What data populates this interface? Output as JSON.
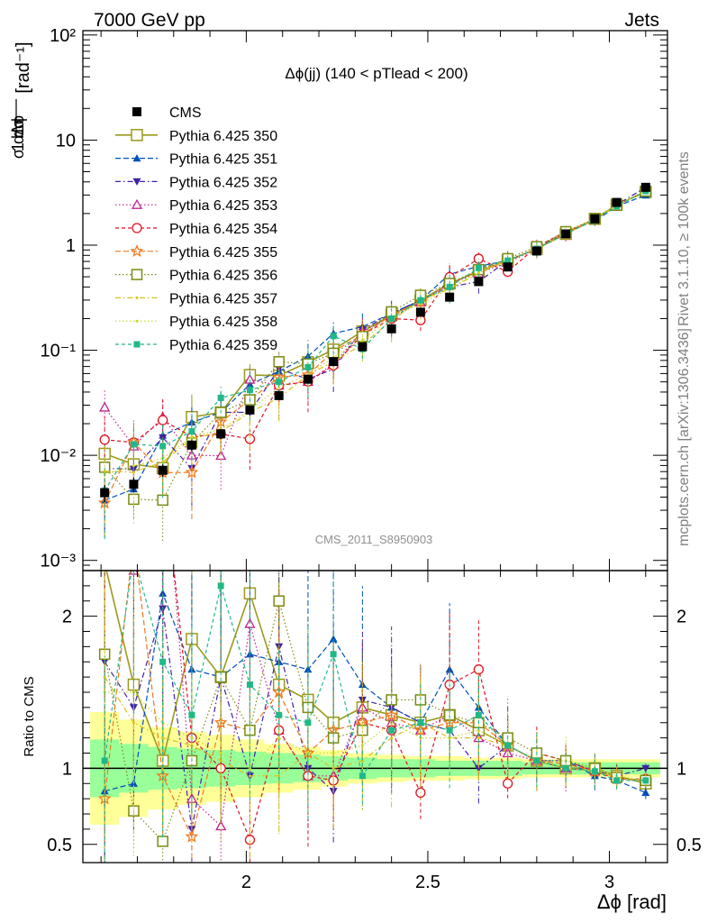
{
  "header": {
    "left": "7000 GeV pp",
    "right": "Jets"
  },
  "side_labels": {
    "rivet": "Rivet 3.1.10, ≥ 100k events",
    "mcplots": "mcplots.cern.ch [arXiv:1306.3436]"
  },
  "chart_data": {
    "type": "line",
    "title": "Δϕ(jj) (140 < pTlead <  200)",
    "analysis": "CMS_2011_S8950903",
    "xlabel": "Δϕ [rad]",
    "ylabel_main": "1/σ dσ/dΔϕ [rad⁻¹]",
    "ylabel_ratio": "Ratio to CMS",
    "xlim": [
      1.55,
      3.16
    ],
    "ylim": [
      0.0008,
      110
    ],
    "yscale": "log",
    "ratio_ylim": [
      0.38,
      2.3
    ],
    "xticks": [
      "2",
      "2.5",
      "3"
    ],
    "yticks_main": [
      "10⁻³",
      "10⁻²",
      "10⁻¹",
      "1",
      "10",
      "10²"
    ],
    "yticks_ratio": [
      "0.5",
      "1",
      "2"
    ],
    "legend_position": "top-left",
    "x": [
      1.61,
      1.69,
      1.77,
      1.85,
      1.93,
      2.01,
      2.09,
      2.17,
      2.24,
      2.32,
      2.4,
      2.48,
      2.56,
      2.64,
      2.72,
      2.8,
      2.88,
      2.96,
      3.02,
      3.1
    ],
    "data": {
      "name": "CMS",
      "values": [
        0.0044,
        0.0053,
        0.0072,
        0.0125,
        0.016,
        0.027,
        0.037,
        0.053,
        0.078,
        0.108,
        0.16,
        0.23,
        0.32,
        0.45,
        0.62,
        0.88,
        1.28,
        1.78,
        2.55,
        3.55
      ],
      "band_inner": [
        0.19,
        0.16,
        0.14,
        0.13,
        0.12,
        0.11,
        0.1,
        0.09,
        0.08,
        0.07,
        0.06,
        0.06,
        0.05,
        0.05,
        0.05,
        0.04,
        0.04,
        0.04,
        0.04,
        0.04
      ],
      "band_outer": [
        0.37,
        0.32,
        0.27,
        0.24,
        0.22,
        0.19,
        0.16,
        0.14,
        0.12,
        0.1,
        0.09,
        0.08,
        0.08,
        0.07,
        0.07,
        0.06,
        0.06,
        0.06,
        0.06,
        0.06
      ]
    },
    "series": [
      {
        "name": "Pythia 6.425 350",
        "color": "#9a9a1c",
        "dash": "",
        "marker": "square-open",
        "size": 12,
        "width": 1.6,
        "ratio": [
          2.35,
          1.55,
          1.05,
          1.85,
          1.6,
          2.15,
          1.55,
          1.45,
          1.3,
          1.4,
          1.35,
          1.3,
          1.35,
          1.25,
          1.15,
          1.05,
          1.0,
          1.0,
          0.95,
          0.9
        ]
      },
      {
        "name": "Pythia 6.425 351",
        "color": "#0050b8",
        "dash": "6,3",
        "marker": "triangle-up",
        "size": 9,
        "width": 1.2,
        "ratio": [
          0.85,
          0.9,
          2.15,
          1.65,
          1.6,
          1.75,
          1.7,
          1.65,
          1.85,
          1.55,
          1.4,
          1.3,
          1.65,
          1.4,
          1.15,
          1.05,
          1.05,
          0.95,
          0.92,
          0.84
        ]
      },
      {
        "name": "Pythia 6.425 352",
        "color": "#4020a8",
        "dash": "6,3,1.5,3",
        "marker": "triangle-down",
        "size": 9,
        "width": 1.2,
        "ratio": [
          1.7,
          1.4,
          2.05,
          0.6,
          1.6,
          0.95,
          1.8,
          1.0,
          0.85,
          1.45,
          1.4,
          1.3,
          1.25,
          1.0,
          1.15,
          1.05,
          1.05,
          0.98,
          0.95,
          1.0
        ]
      },
      {
        "name": "Pythia 6.425 353",
        "color": "#c02090",
        "dash": "1.5,2.5",
        "marker": "triangle-open",
        "size": 10,
        "width": 1.2,
        "ratio": [
          6.5,
          2.3,
          3.2,
          0.8,
          0.62,
          1.95,
          1.25,
          0.95,
          0.95,
          1.4,
          1.3,
          1.25,
          1.35,
          1.2,
          1.1,
          1.05,
          1.0,
          0.98,
          0.94,
          0.92
        ]
      },
      {
        "name": "Pythia 6.425 354",
        "color": "#e01020",
        "dash": "4,3",
        "marker": "circle-open",
        "size": 10,
        "width": 1.2,
        "ratio": [
          3.2,
          2.5,
          3.0,
          1.2,
          1.0,
          0.53,
          1.25,
          0.95,
          0.92,
          1.3,
          1.25,
          0.84,
          1.55,
          1.65,
          0.9,
          1.1,
          1.05,
          0.98,
          0.93,
          0.93
        ]
      },
      {
        "name": "Pythia 6.425 355",
        "color": "#f07820",
        "dash": "6,3",
        "marker": "star",
        "size": 12,
        "width": 1.2,
        "ratio": [
          0.8,
          2.5,
          0.95,
          0.55,
          1.3,
          1.25,
          1.5,
          1.1,
          1.25,
          1.3,
          1.35,
          1.25,
          1.3,
          1.3,
          1.15,
          1.05,
          1.03,
          0.98,
          0.94,
          0.92
        ]
      },
      {
        "name": "Pythia 6.425 356",
        "color": "#7a8a10",
        "dash": "1.5,2.5",
        "marker": "square-open",
        "size": 11,
        "width": 1.2,
        "ratio": [
          1.75,
          0.72,
          0.52,
          1.05,
          1.6,
          1.25,
          2.1,
          1.4,
          1.2,
          1.25,
          1.45,
          1.45,
          1.35,
          1.3,
          1.2,
          1.1,
          1.05,
          1.0,
          0.94,
          0.92
        ]
      },
      {
        "name": "Pythia 6.425 357",
        "color": "#d8c018",
        "dash": "6,3,1.5,3",
        "marker": "dot",
        "size": 5,
        "width": 1.2,
        "ratio": [
          1.6,
          1.3,
          1.2,
          1.15,
          1.05,
          0.95,
          0.95,
          1.1,
          1.0,
          1.05,
          1.2,
          1.3,
          1.2,
          1.2,
          1.15,
          1.05,
          1.0,
          0.98,
          0.94,
          0.92
        ]
      },
      {
        "name": "Pythia 6.425 358",
        "color": "#c8d828",
        "dash": "1.5,2.5",
        "marker": "dot",
        "size": 5,
        "width": 1.2,
        "ratio": [
          1.5,
          1.5,
          1.3,
          1.2,
          1.1,
          1.0,
          1.2,
          1.1,
          1.1,
          1.15,
          1.3,
          1.2,
          1.2,
          1.25,
          1.15,
          1.05,
          1.05,
          1.0,
          0.95,
          0.92
        ]
      },
      {
        "name": "Pythia 6.425 359",
        "color": "#20b888",
        "dash": "4,3",
        "marker": "square",
        "size": 7,
        "width": 1.2,
        "ratio": [
          1.05,
          2.4,
          1.7,
          1.35,
          2.2,
          1.55,
          1.35,
          1.3,
          1.75,
          0.95,
          1.25,
          1.3,
          1.25,
          1.35,
          1.15,
          1.05,
          1.0,
          0.98,
          0.92,
          0.92
        ]
      }
    ]
  }
}
